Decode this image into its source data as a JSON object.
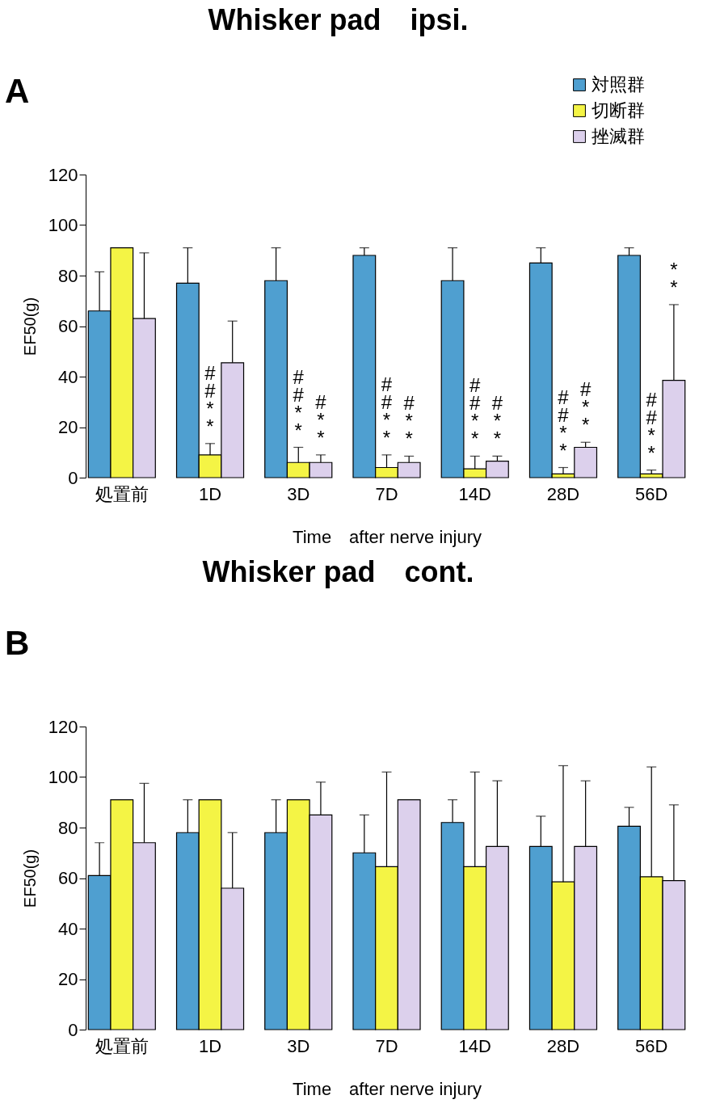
{
  "chart_data": [
    {
      "type": "bar",
      "title": "Whisker pad　ipsi.",
      "xlabel": "Time　after nerve injury",
      "ylabel": "EF50(g)",
      "categories": [
        "処置前",
        "1D",
        "3D",
        "7D",
        "14D",
        "28D",
        "56D"
      ],
      "ylim": [
        0,
        120
      ],
      "yticks": [
        0,
        20,
        40,
        60,
        80,
        100,
        120
      ],
      "legend": "top right",
      "grid": false,
      "series": [
        {
          "name": "対照群",
          "color": "#4f9fd0",
          "values": [
            66,
            77,
            78,
            88,
            78,
            85,
            88
          ],
          "errors": [
            [
              66,
              81.5
            ],
            [
              77,
              91
            ],
            [
              78,
              91
            ],
            [
              88,
              91
            ],
            [
              78,
              91
            ],
            [
              85,
              91
            ],
            [
              88,
              91
            ]
          ]
        },
        {
          "name": "切断群",
          "color": "#f4f445",
          "values": [
            91,
            9,
            6,
            4,
            3.5,
            1.5,
            1.5
          ],
          "errors": [
            null,
            [
              9,
              13.5
            ],
            [
              6,
              12
            ],
            [
              4,
              9
            ],
            [
              3.5,
              8.5
            ],
            [
              1.5,
              4
            ],
            [
              1.5,
              3
            ]
          ]
        },
        {
          "name": "挫滅群",
          "color": "#dcd0ec",
          "values": [
            63,
            45.5,
            6,
            6,
            6.5,
            12,
            38.5
          ],
          "errors": [
            [
              63,
              89
            ],
            [
              45.5,
              62
            ],
            [
              6,
              9
            ],
            [
              6,
              8.5
            ],
            [
              6.5,
              8.5
            ],
            [
              12,
              14
            ],
            [
              38.5,
              68.5
            ]
          ]
        }
      ],
      "annotations": [
        "A",
        {
          "text": "#\n#\n*\n*",
          "x": "1D",
          "y": 9
        },
        {
          "text": "#\n#\n*\n*",
          "x": "3D",
          "y": 6
        },
        {
          "text": "#\n*\n*",
          "x": "3D",
          "y": 6
        },
        {
          "text": "#\n#\n*\n*",
          "x": "7D",
          "y": 4
        },
        {
          "text": "#\n*\n*",
          "x": "7D",
          "y": 6
        },
        {
          "text": "#\n#\n*\n*",
          "x": "14D",
          "y": 3.5
        },
        {
          "text": "#\n*\n*",
          "x": "14D",
          "y": 6.5
        },
        {
          "text": "#\n#\n*\n*",
          "x": "28D",
          "y": 1.5
        },
        "#\n*\n*",
        {
          "text": "#\n#\n*\n*",
          "x": "56D",
          "y": 1.5
        },
        "*\n*"
      ]
    },
    {
      "type": "bar",
      "title": "Whisker pad　cont.",
      "xlabel": "Time　after nerve injury",
      "ylabel": "EF50(g)",
      "categories": [
        "処置前",
        "1D",
        "3D",
        "7D",
        "14D",
        "28D",
        "56D"
      ],
      "ylim": [
        0,
        120
      ],
      "yticks": [
        0,
        20,
        40,
        60,
        80,
        100,
        120
      ],
      "legend": "top right",
      "grid": false,
      "series": [
        {
          "name": "対照群",
          "color": "#4f9fd0",
          "values": [
            61,
            78,
            78,
            70,
            82,
            72.5,
            80.5
          ],
          "errors": [
            [
              61,
              74
            ],
            [
              78,
              91
            ],
            [
              78,
              91
            ],
            [
              70,
              85
            ],
            [
              82,
              91
            ],
            [
              72.5,
              84.5
            ],
            [
              80.5,
              88
            ]
          ]
        },
        {
          "name": "切断群",
          "color": "#f4f445",
          "values": [
            91,
            91,
            91,
            64.5,
            64.5,
            58.5,
            60.5
          ],
          "errors": [
            null,
            null,
            null,
            [
              64.5,
              102
            ],
            [
              64.5,
              102
            ],
            [
              58.5,
              104.5
            ],
            [
              60.5,
              104
            ]
          ]
        },
        {
          "name": "挫滅群",
          "color": "#dcd0ec",
          "values": [
            74,
            56,
            85,
            91,
            72.5,
            72.5,
            59
          ],
          "errors": [
            [
              74,
              97.5
            ],
            [
              56,
              78
            ],
            [
              85,
              98
            ],
            null,
            [
              72.5,
              98.5
            ],
            [
              72.5,
              98.5
            ],
            [
              59,
              89
            ]
          ]
        }
      ],
      "annotations": [
        "B"
      ]
    }
  ]
}
